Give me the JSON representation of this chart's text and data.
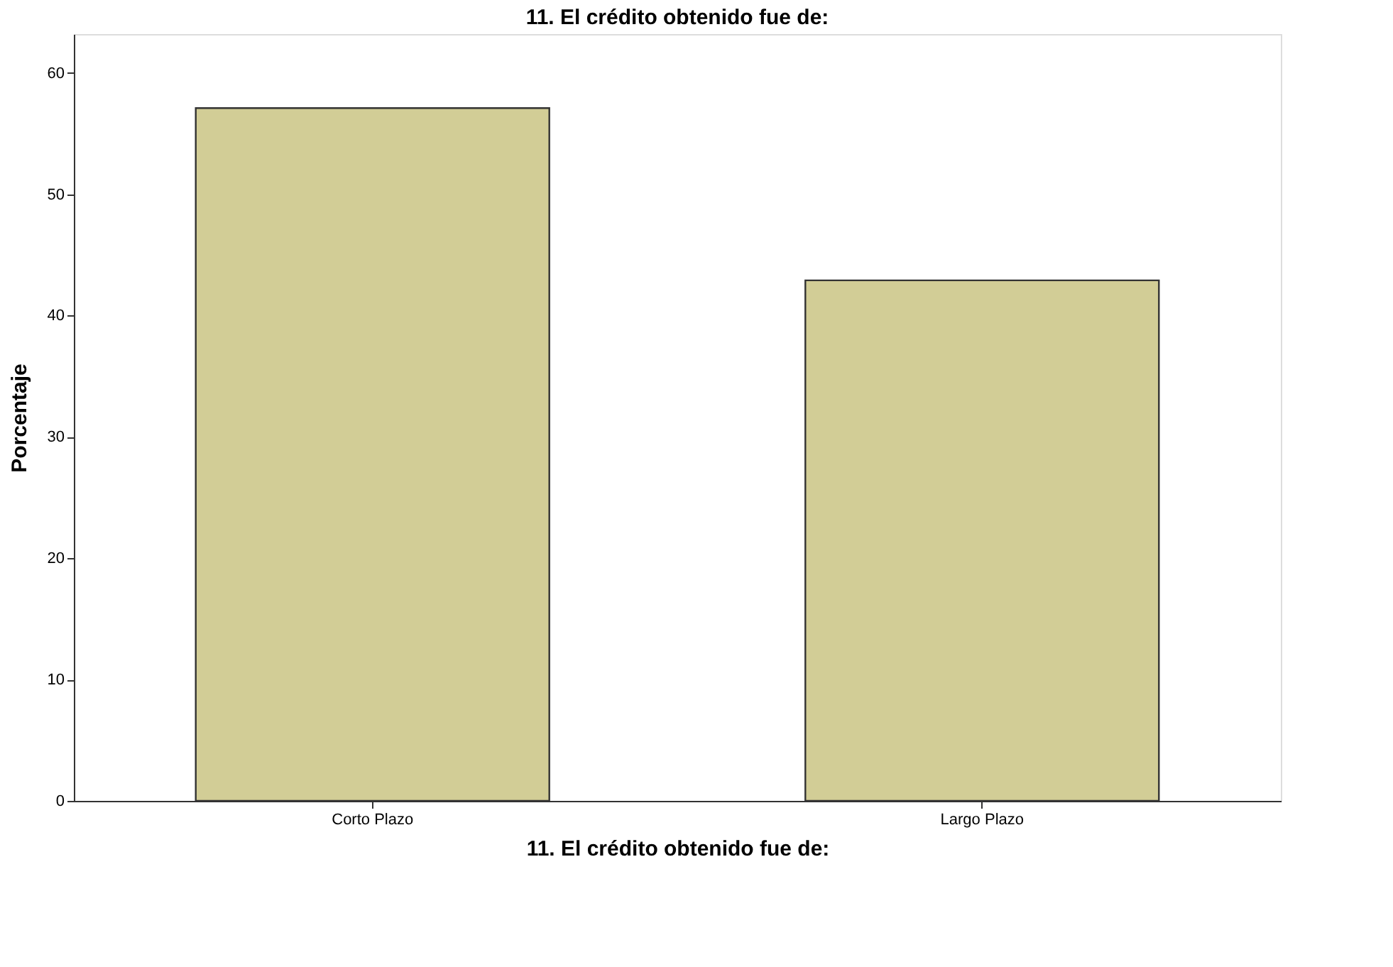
{
  "chart_data": {
    "type": "bar",
    "title": "11. El crédito obtenido fue de:",
    "xlabel": "11. El crédito obtenido fue de:",
    "ylabel": "Porcentaje",
    "categories": [
      "Corto Plazo",
      "Largo Plazo"
    ],
    "values": [
      57.1,
      42.9
    ],
    "color": "#d2cd96",
    "ylim": [
      0,
      63.2
    ],
    "yticks": [
      0,
      10,
      20,
      30,
      40,
      50,
      60
    ],
    "grid": false
  }
}
